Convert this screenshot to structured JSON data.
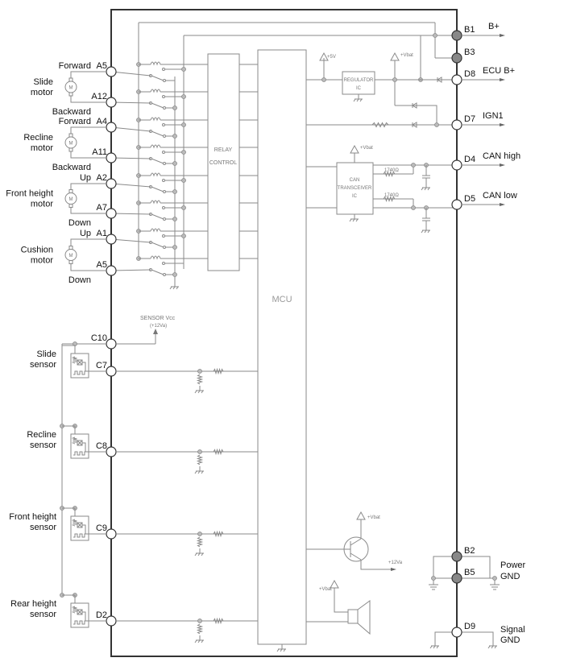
{
  "blocks": {
    "mcu": "MCU",
    "relay_control": [
      "RELAY",
      "CONTROL"
    ],
    "regulator": [
      "REGULATOR",
      "IC"
    ],
    "can_transceiver": [
      "CAN",
      "TRANSCEIVER",
      "IC"
    ],
    "sensor_vcc": [
      "SENSOR Vcc",
      "(+12Va)"
    ],
    "can_resistor_high": "1740Ω",
    "can_resistor_low": "1740Ω",
    "supply_5v": "+5V",
    "vbat": "+Vbat",
    "v12a": "+12Va"
  },
  "left_pins": [
    {
      "id": "A5",
      "label": "Forward"
    },
    {
      "id": "A12",
      "label": "Backward"
    },
    {
      "id": "A4",
      "label": "Forward"
    },
    {
      "id": "A11",
      "label": "Backward"
    },
    {
      "id": "A2",
      "label": "Up"
    },
    {
      "id": "A7",
      "label": "Down"
    },
    {
      "id": "A1",
      "label": "Up"
    },
    {
      "id": "A5",
      "label": "Down"
    },
    {
      "id": "C10",
      "label": ""
    },
    {
      "id": "C7",
      "label": ""
    },
    {
      "id": "C8",
      "label": ""
    },
    {
      "id": "C9",
      "label": ""
    },
    {
      "id": "D2",
      "label": ""
    }
  ],
  "motors": [
    {
      "name": [
        "Slide",
        "motor"
      ]
    },
    {
      "name": [
        "Recline",
        "motor"
      ]
    },
    {
      "name": [
        "Front height",
        "motor"
      ]
    },
    {
      "name": [
        "Cushion",
        "motor"
      ]
    }
  ],
  "sensors": [
    {
      "name": [
        "Slide",
        "sensor"
      ]
    },
    {
      "name": [
        "Recline",
        "sensor"
      ]
    },
    {
      "name": [
        "Front height",
        "sensor"
      ]
    },
    {
      "name": [
        "Rear height",
        "sensor"
      ]
    }
  ],
  "right_pins": [
    {
      "id": "B1",
      "label": "B+",
      "filled": true
    },
    {
      "id": "B3",
      "label": "",
      "filled": true
    },
    {
      "id": "D8",
      "label": "ECU B+",
      "filled": false
    },
    {
      "id": "D7",
      "label": "IGN1",
      "filled": false
    },
    {
      "id": "D4",
      "label": "CAN high",
      "filled": false
    },
    {
      "id": "D5",
      "label": "CAN low",
      "filled": false
    },
    {
      "id": "B2",
      "label": "",
      "filled": true
    },
    {
      "id": "B5",
      "label": "",
      "filled": true
    },
    {
      "id": "D9",
      "label": "",
      "filled": false
    }
  ],
  "ground_labels": {
    "power": [
      "Power",
      "GND"
    ],
    "signal": [
      "Signal",
      "GND"
    ]
  },
  "colors": {
    "frame": "#333333",
    "wire": "#888888",
    "pin_filled": "#888888"
  }
}
